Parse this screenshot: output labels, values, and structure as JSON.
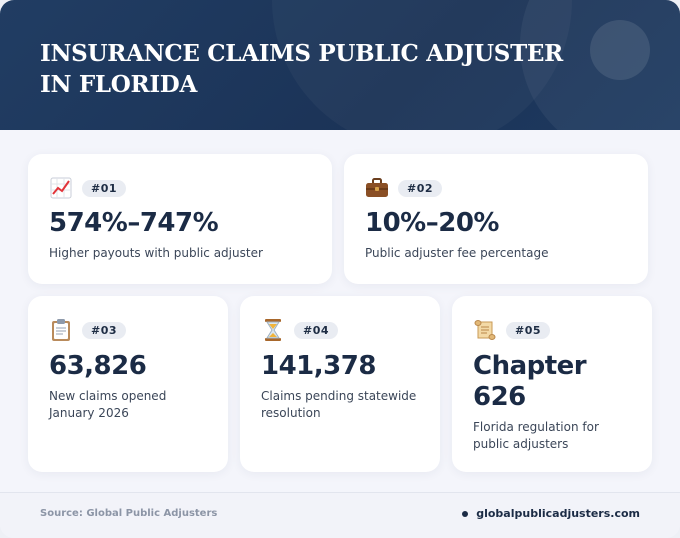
{
  "header": {
    "title_line1": "INSURANCE CLAIMS PUBLIC ADJUSTER",
    "title_line2": "IN FLORIDA"
  },
  "cards": [
    {
      "icon": "chart-increasing-icon",
      "badge": "#01",
      "value": "574%–747%",
      "value_line2": "",
      "desc_line1": "Higher payouts with public adjuster",
      "desc_line2": ""
    },
    {
      "icon": "briefcase-icon",
      "badge": "#02",
      "value": "10%–20%",
      "value_line2": "",
      "desc_line1": "Public adjuster fee percentage",
      "desc_line2": ""
    },
    {
      "icon": "clipboard-icon",
      "badge": "#03",
      "value": "63,826",
      "value_line2": "",
      "desc_line1": "New claims opened",
      "desc_line2": "January 2026"
    },
    {
      "icon": "hourglass-icon",
      "badge": "#04",
      "value": "141,378",
      "value_line2": "",
      "desc_line1": "Claims pending statewide",
      "desc_line2": "resolution"
    },
    {
      "icon": "scroll-icon",
      "badge": "#05",
      "value": "Chapter",
      "value_line2": "626",
      "desc_line1": "Florida regulation for",
      "desc_line2": "public adjusters"
    }
  ],
  "footer": {
    "source": "Source: Global Public Adjusters",
    "site": "globalpublicadjusters.com"
  },
  "colors": {
    "header_bg": "#1b3357",
    "value_text": "#1b2b45",
    "badge_bg": "#e9ecf2"
  }
}
